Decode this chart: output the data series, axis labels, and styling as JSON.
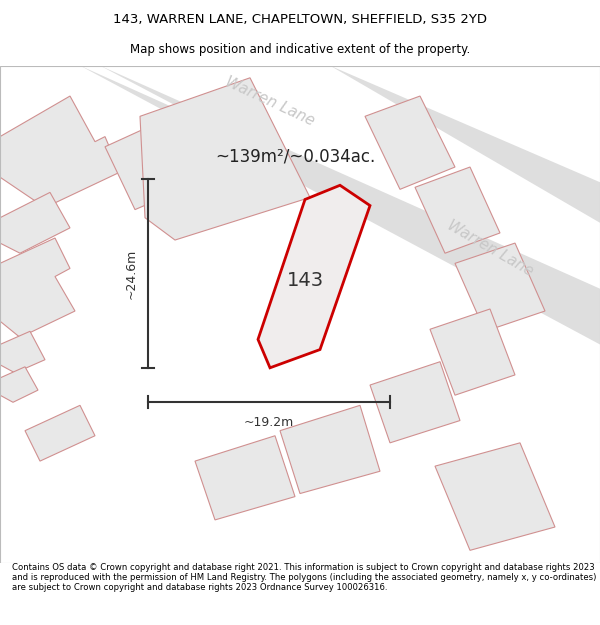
{
  "title_line1": "143, WARREN LANE, CHAPELTOWN, SHEFFIELD, S35 2YD",
  "title_line2": "Map shows position and indicative extent of the property.",
  "footer_text": "Contains OS data © Crown copyright and database right 2021. This information is subject to Crown copyright and database rights 2023 and is reproduced with the permission of HM Land Registry. The polygons (including the associated geometry, namely x, y co-ordinates) are subject to Crown copyright and database rights 2023 Ordnance Survey 100026316.",
  "area_label": "~139m²/~0.034ac.",
  "number_label": "143",
  "dim_h_label": "~24.6m",
  "dim_w_label": "~19.2m",
  "road_label1": "Warren Lane",
  "road_label2": "Warren Lane",
  "bg_color": "#ffffff",
  "map_bg": "#ffffff",
  "building_fill": "#e8e8e8",
  "building_stroke": "#d09090",
  "highlight_fill": "#f0eded",
  "highlight_stroke": "#cc0000",
  "dim_line_color": "#333333",
  "road_text_color": "#c8c8c8",
  "title_color": "#000000",
  "footer_color": "#000000",
  "label_color": "#333333",
  "road_fill": "#dedede"
}
